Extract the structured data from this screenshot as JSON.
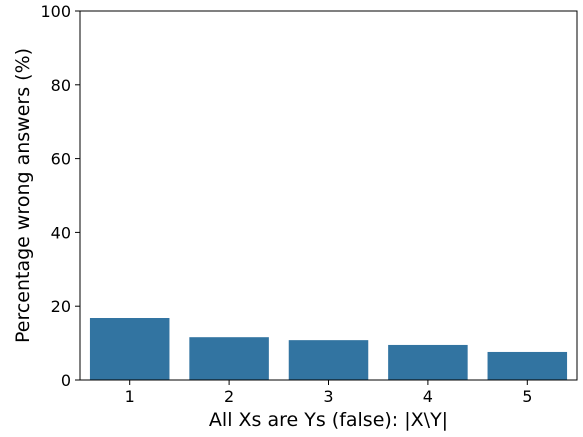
{
  "chart_data": {
    "type": "bar",
    "categories": [
      "1",
      "2",
      "3",
      "4",
      "5"
    ],
    "values": [
      16.8,
      11.6,
      10.8,
      9.5,
      7.6
    ],
    "title": "",
    "xlabel": "All Xs are Ys (false): |X\\Y|",
    "ylabel": "Percentage wrong answers (%)",
    "ylim": [
      0,
      100
    ],
    "yticks": [
      "0",
      "20",
      "40",
      "60",
      "80",
      "100"
    ],
    "grid": false,
    "legend": "none",
    "colors": {
      "bar": "#3274a1",
      "axis": "#000000"
    }
  }
}
